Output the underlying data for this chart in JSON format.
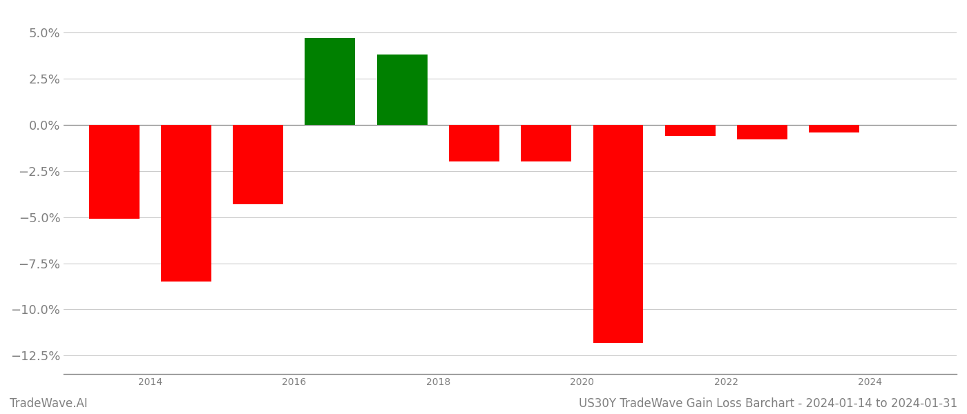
{
  "years": [
    2013.5,
    2014.5,
    2015.5,
    2016.5,
    2017.5,
    2018.5,
    2019.5,
    2020.5,
    2021.5,
    2022.5,
    2023.5
  ],
  "values": [
    -5.1,
    -8.5,
    -4.3,
    4.7,
    3.8,
    -2.0,
    -2.0,
    -11.8,
    -0.6,
    -0.8,
    -0.4
  ],
  "bar_colors": [
    "#ff0000",
    "#ff0000",
    "#ff0000",
    "#008000",
    "#008000",
    "#ff0000",
    "#ff0000",
    "#ff0000",
    "#ff0000",
    "#ff0000",
    "#ff0000"
  ],
  "ylim": [
    -13.5,
    6.2
  ],
  "yticks": [
    5.0,
    2.5,
    0.0,
    -2.5,
    -5.0,
    -7.5,
    -10.0,
    -12.5
  ],
  "ytick_labels": [
    "5.0%",
    "2.5%",
    "0.0%",
    "−2.5%",
    "−5.0%",
    "−7.5%",
    "−10.0%",
    "−12.5%"
  ],
  "xtick_years": [
    2014,
    2016,
    2018,
    2020,
    2022,
    2024
  ],
  "xlim": [
    2012.8,
    2025.2
  ],
  "title": "US30Y TradeWave Gain Loss Barchart - 2024-01-14 to 2024-01-31",
  "footer_left": "TradeWave.AI",
  "background_color": "#ffffff",
  "bar_width": 0.7,
  "grid_color": "#cccccc",
  "text_color": "#808080",
  "zero_line_color": "#888888",
  "tick_fontsize": 13,
  "footer_fontsize": 12
}
